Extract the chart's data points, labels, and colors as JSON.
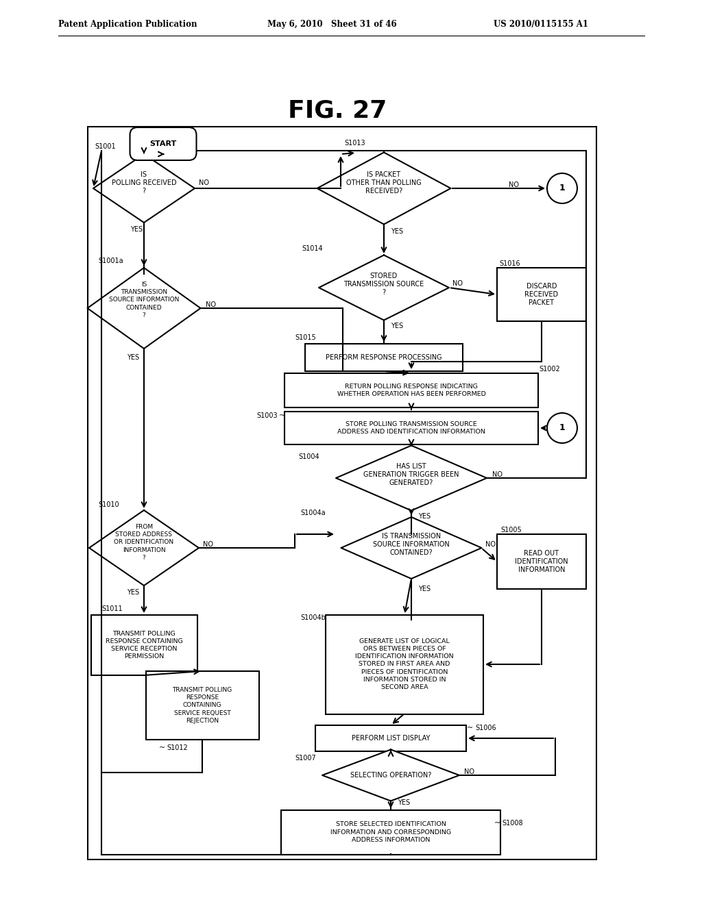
{
  "title": "FIG. 27",
  "header_left": "Patent Application Publication",
  "header_mid": "May 6, 2010   Sheet 31 of 46",
  "header_right": "US 2010/0115155 A1",
  "bg_color": "#ffffff",
  "line_color": "#000000",
  "text_color": "#000000"
}
